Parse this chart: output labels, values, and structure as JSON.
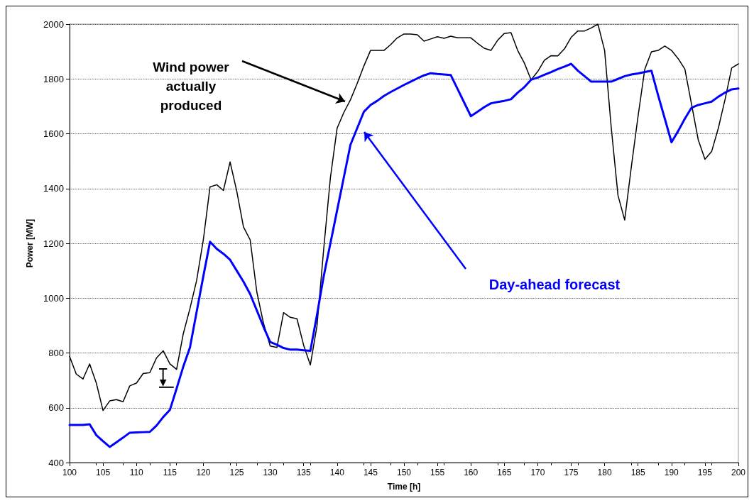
{
  "chart_data": {
    "type": "line",
    "xlabel": "Time [h]",
    "ylabel": "Power [MW]",
    "x": [
      100,
      101,
      102,
      103,
      104,
      105,
      106,
      107,
      108,
      109,
      110,
      111,
      112,
      113,
      114,
      115,
      116,
      117,
      118,
      119,
      120,
      121,
      122,
      123,
      124,
      125,
      126,
      127,
      128,
      129,
      130,
      131,
      132,
      133,
      134,
      135,
      136,
      137,
      138,
      139,
      140,
      141,
      142,
      143,
      144,
      145,
      146,
      147,
      148,
      149,
      150,
      151,
      152,
      153,
      154,
      155,
      156,
      157,
      158,
      159,
      160,
      161,
      162,
      163,
      164,
      165,
      166,
      167,
      168,
      169,
      170,
      171,
      172,
      173,
      174,
      175,
      176,
      177,
      178,
      179,
      180,
      181,
      182,
      183,
      184,
      185,
      186,
      187,
      188,
      189,
      190,
      191,
      192,
      193,
      194,
      195,
      196,
      197,
      198,
      199,
      200
    ],
    "series": [
      {
        "color": "#000000",
        "values": [
          787,
          723,
          705,
          760,
          690,
          590,
          625,
          630,
          622,
          680,
          690,
          725,
          728,
          782,
          808,
          760,
          740,
          870,
          962,
          1065,
          1213,
          1406,
          1414,
          1393,
          1497,
          1390,
          1260,
          1213,
          1022,
          908,
          825,
          820,
          947,
          930,
          925,
          828,
          756,
          900,
          1180,
          1440,
          1620,
          1677,
          1724,
          1783,
          1847,
          1904,
          1904,
          1904,
          1925,
          1950,
          1964,
          1964,
          1961,
          1938,
          1946,
          1954,
          1948,
          1956,
          1950,
          1950,
          1950,
          1930,
          1912,
          1904,
          1941,
          1966,
          1969,
          1904,
          1858,
          1797,
          1827,
          1868,
          1885,
          1884,
          1910,
          1952,
          1975,
          1975,
          1986,
          2000,
          1904,
          1620,
          1375,
          1285,
          1480,
          1664,
          1835,
          1899,
          1904,
          1920,
          1904,
          1874,
          1836,
          1707,
          1578,
          1507,
          1535,
          1620,
          1724,
          1840,
          1855
        ]
      },
      {
        "color": "#0000ff",
        "values": [
          537,
          537,
          537,
          540,
          500,
          478,
          457,
          474,
          491,
          509,
          510,
          511,
          512,
          535,
          566,
          592,
          670,
          750,
          820,
          950,
          1080,
          1206,
          1180,
          1162,
          1140,
          1100,
          1060,
          1015,
          955,
          895,
          840,
          830,
          818,
          812,
          812,
          810,
          808,
          940,
          1080,
          1200,
          1320,
          1440,
          1560,
          1620,
          1680,
          1705,
          1720,
          1738,
          1752,
          1765,
          1778,
          1790,
          1802,
          1813,
          1821,
          1818,
          1816,
          1814,
          1764,
          1714,
          1664,
          1680,
          1697,
          1711,
          1716,
          1720,
          1726,
          1750,
          1770,
          1797,
          1805,
          1815,
          1825,
          1836,
          1845,
          1855,
          1830,
          1810,
          1790,
          1790,
          1790,
          1790,
          1800,
          1810,
          1816,
          1820,
          1825,
          1830,
          1740,
          1655,
          1569,
          1610,
          1655,
          1695,
          1705,
          1711,
          1717,
          1735,
          1750,
          1762,
          1765
        ]
      }
    ],
    "xlim": [
      100,
      200
    ],
    "xticks": [
      100,
      105,
      110,
      115,
      120,
      125,
      130,
      135,
      140,
      145,
      150,
      155,
      160,
      165,
      170,
      175,
      180,
      185,
      190,
      195,
      200
    ],
    "ylim": [
      400,
      2000
    ],
    "yticks": [
      400,
      600,
      800,
      1000,
      1200,
      1400,
      1600,
      1800,
      2000
    ],
    "grid": "y",
    "marker": "none",
    "line_style": "solid",
    "annotations": [
      "Wind power actually produced",
      "Day-ahead forecast"
    ]
  }
}
